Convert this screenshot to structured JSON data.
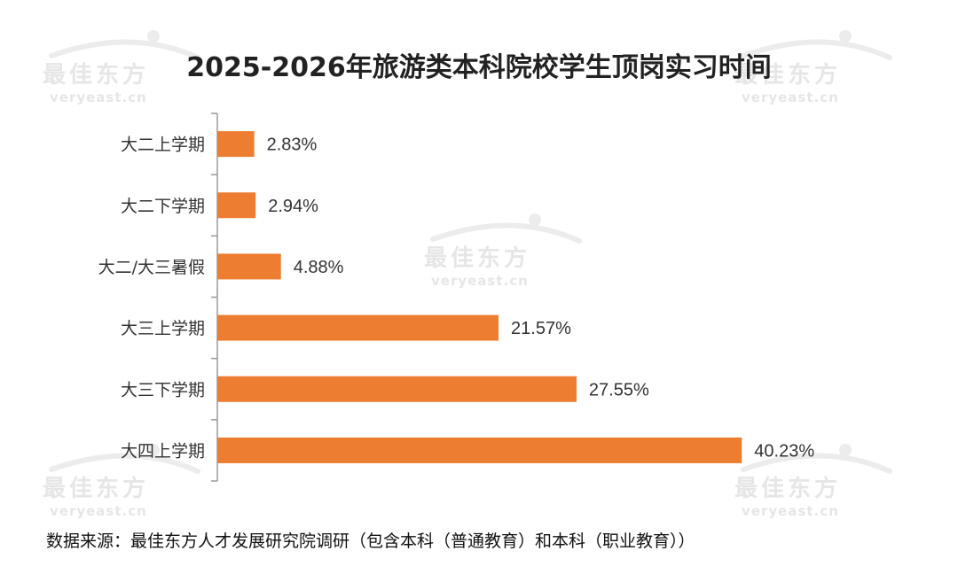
{
  "chart_data": {
    "type": "bar",
    "orientation": "horizontal",
    "title": "2025-2026年旅游类本科院校学生顶岗实习时间",
    "categories": [
      "大二上学期",
      "大二下学期",
      "大二/大三暑假",
      "大三上学期",
      "大三下学期",
      "大四上学期"
    ],
    "values": [
      2.83,
      2.94,
      4.88,
      21.57,
      27.55,
      40.23
    ],
    "value_labels": [
      "2.83%",
      "2.94%",
      "4.88%",
      "21.57%",
      "27.55%",
      "40.23%"
    ],
    "xlim": [
      0,
      43
    ],
    "grid": false,
    "bar_color": "#ED7D31"
  },
  "source_note": "数据来源：最佳东方人才发展研究院调研（包含本科（普通教育）和本科（职业教育））",
  "watermark": {
    "brand": "最佳东方",
    "site": "veryeast.cn"
  }
}
